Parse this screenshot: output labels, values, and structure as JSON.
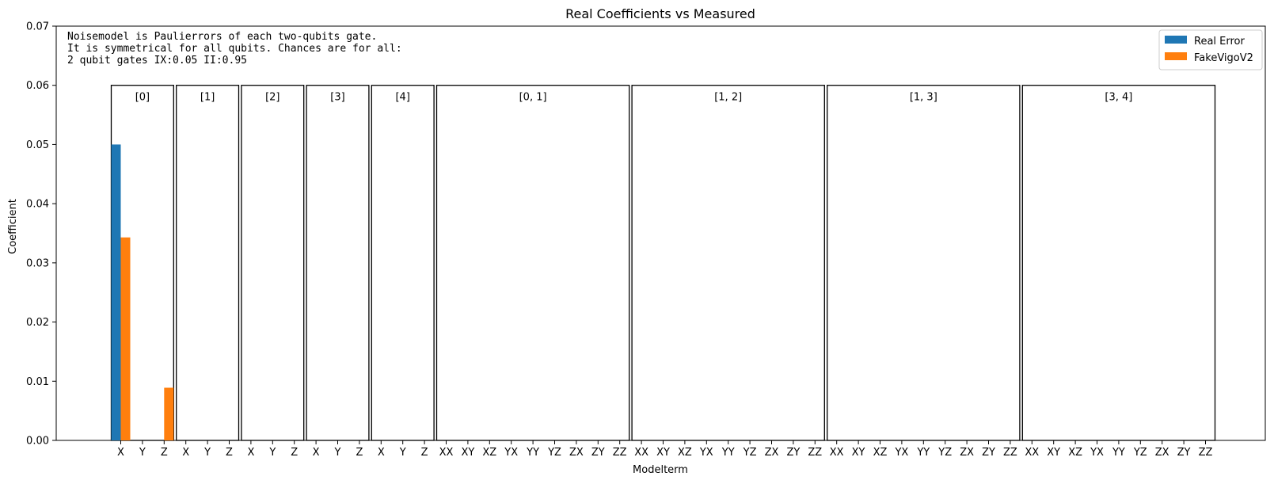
{
  "chart_data": {
    "type": "bar",
    "title": "Real Coefficients vs Measured",
    "xlabel": "Modelterm",
    "ylabel": "Coefficient",
    "ylim": [
      0,
      0.07
    ],
    "yticks": [
      "0.00",
      "0.01",
      "0.02",
      "0.03",
      "0.04",
      "0.05",
      "0.06",
      "0.07"
    ],
    "legend_position": "top-right",
    "annotation_lines": [
      "Noisemodel is Paulierrors of each two-qubits gate.",
      "It is symmetrical for all qubits. Chances are for all:",
      "2 qubit gates IX:0.05   II:0.95"
    ],
    "groups": [
      {
        "label": "[0]",
        "terms": [
          "X",
          "Y",
          "Z"
        ]
      },
      {
        "label": "[1]",
        "terms": [
          "X",
          "Y",
          "Z"
        ]
      },
      {
        "label": "[2]",
        "terms": [
          "X",
          "Y",
          "Z"
        ]
      },
      {
        "label": "[3]",
        "terms": [
          "X",
          "Y",
          "Z"
        ]
      },
      {
        "label": "[4]",
        "terms": [
          "X",
          "Y",
          "Z"
        ]
      },
      {
        "label": "[0, 1]",
        "terms": [
          "XX",
          "XY",
          "XZ",
          "YX",
          "YY",
          "YZ",
          "ZX",
          "ZY",
          "ZZ"
        ]
      },
      {
        "label": "[1, 2]",
        "terms": [
          "XX",
          "XY",
          "XZ",
          "YX",
          "YY",
          "YZ",
          "ZX",
          "ZY",
          "ZZ"
        ]
      },
      {
        "label": "[1, 3]",
        "terms": [
          "XX",
          "XY",
          "XZ",
          "YX",
          "YY",
          "YZ",
          "ZX",
          "ZY",
          "ZZ"
        ]
      },
      {
        "label": "[3, 4]",
        "terms": [
          "XX",
          "XY",
          "XZ",
          "YX",
          "YY",
          "YZ",
          "ZX",
          "ZY",
          "ZZ"
        ]
      }
    ],
    "group_box_height": 0.06,
    "series": [
      {
        "name": "Real Error",
        "color": "#1f77b4",
        "values": [
          0.05,
          0,
          0,
          0,
          0,
          0,
          0,
          0,
          0,
          0,
          0,
          0,
          0,
          0,
          0,
          0,
          0,
          0,
          0,
          0,
          0,
          0,
          0,
          0,
          0,
          0,
          0,
          0,
          0,
          0,
          0,
          0,
          0,
          0,
          0,
          0,
          0,
          0,
          0,
          0,
          0,
          0,
          0,
          0,
          0,
          0,
          0,
          0,
          0,
          0,
          0
        ]
      },
      {
        "name": "FakeVigoV2",
        "color": "#ff7f0e",
        "values": [
          0.0343,
          0,
          0.0089,
          0,
          0,
          0,
          0,
          0,
          0,
          0,
          0,
          0,
          0,
          0,
          0,
          0,
          0,
          0,
          0,
          0,
          0,
          0,
          0,
          0,
          0,
          0,
          0,
          0,
          0,
          0,
          0,
          0,
          0,
          0,
          0,
          0,
          0,
          0,
          0,
          0,
          0,
          0,
          0,
          0,
          0,
          0,
          0,
          0,
          0,
          0,
          0
        ]
      }
    ]
  }
}
